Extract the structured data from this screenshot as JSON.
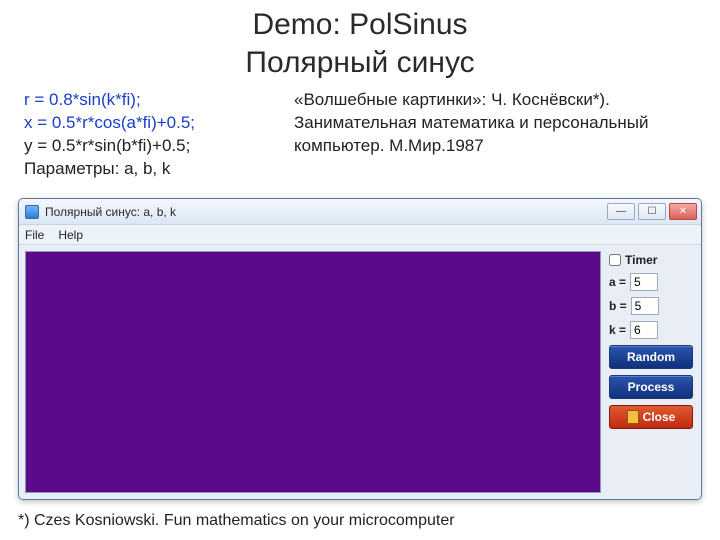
{
  "title_line1": "Demo: PolSinus",
  "title_line2": "Полярный синус",
  "formulas": {
    "line1": "r = 0.8*sin(k*fi);",
    "line2": " x = 0.5*r*cos(a*fi)+0.5;",
    "line3": "y = 0.5*r*sin(b*fi)+0.5;",
    "line4": "Параметры: a, b, k"
  },
  "citation": "«Волшебные картинки»: Ч. Коснёвски*). Занимательная математика и персональный компьютер. М.Мир.1987",
  "footnote": "*) Czes Kosniowski. Fun mathematics on your microcomputer",
  "window": {
    "title": "Полярный синус: a, b, k",
    "menu": {
      "file": "File",
      "help": "Help"
    },
    "controls": {
      "min": "—",
      "max": "☐",
      "close": "✕"
    },
    "panel": {
      "timer_label": "Timer",
      "timer_checked": false,
      "a_label": "a =",
      "a_value": "5",
      "b_label": "b =",
      "b_value": "5",
      "k_label": "k =",
      "k_value": "6",
      "random": "Random",
      "process": "Process",
      "close": "Close"
    },
    "colors": {
      "canvas_bg": "#5a0a8a"
    }
  }
}
